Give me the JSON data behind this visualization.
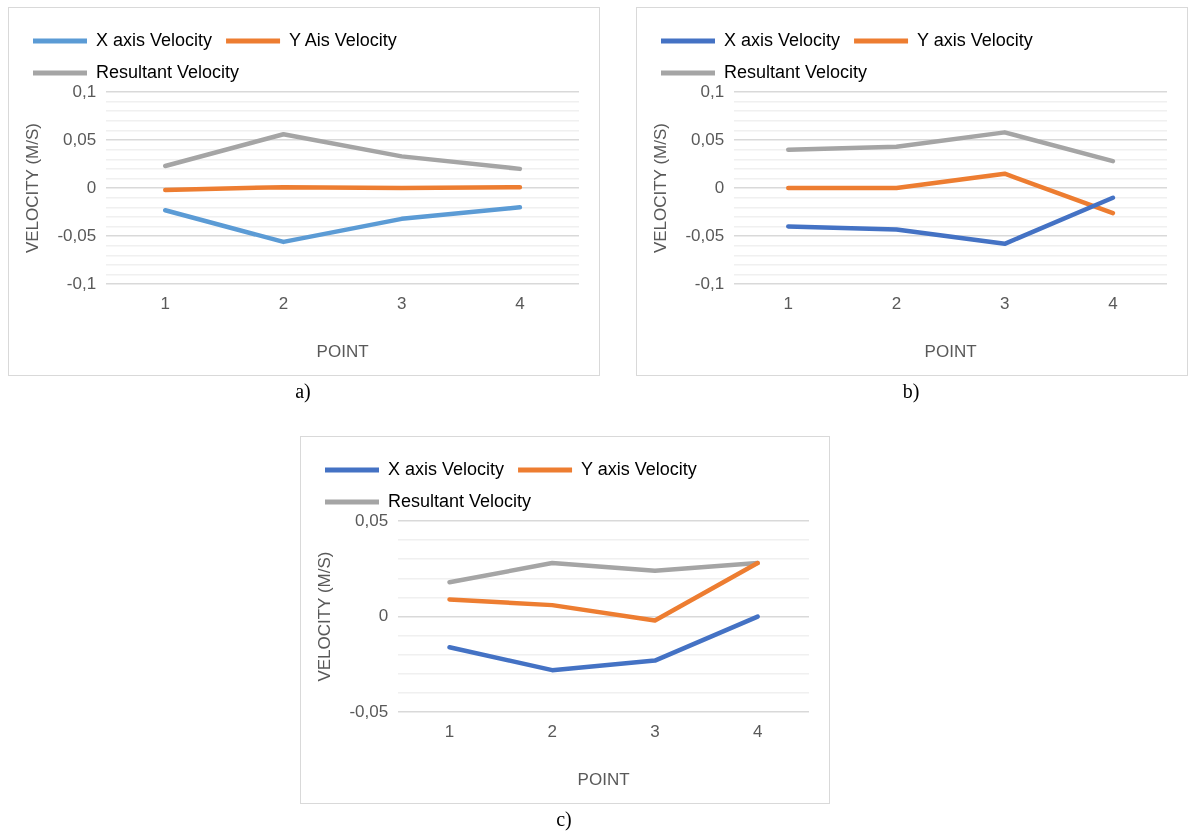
{
  "chart_data": [
    {
      "type": "line",
      "categories": [
        "1",
        "2",
        "3",
        "4"
      ],
      "xlabel": "POINT",
      "ylabel": "VELOCITY (M/S)",
      "ylim": [
        -0.1,
        0.1
      ],
      "yticks": [
        {
          "value": -0.1,
          "label": "-0,1"
        },
        {
          "value": -0.09,
          "label": null
        },
        {
          "value": -0.08,
          "label": null
        },
        {
          "value": -0.07,
          "label": null
        },
        {
          "value": -0.06,
          "label": null
        },
        {
          "value": -0.05,
          "label": "-0,05"
        },
        {
          "value": -0.04,
          "label": null
        },
        {
          "value": -0.03,
          "label": null
        },
        {
          "value": -0.02,
          "label": null
        },
        {
          "value": -0.01,
          "label": null
        },
        {
          "value": 0,
          "label": "0"
        },
        {
          "value": 0.01,
          "label": null
        },
        {
          "value": 0.02,
          "label": null
        },
        {
          "value": 0.03,
          "label": null
        },
        {
          "value": 0.04,
          "label": null
        },
        {
          "value": 0.05,
          "label": "0,05"
        },
        {
          "value": 0.06,
          "label": null
        },
        {
          "value": 0.07,
          "label": null
        },
        {
          "value": 0.08,
          "label": null
        },
        {
          "value": 0.09,
          "label": null
        },
        {
          "value": 0.1,
          "label": "0,1"
        }
      ],
      "grid": "y",
      "legend": "top",
      "annotations": [
        "a)"
      ],
      "series": [
        {
          "name": "X axis Velocity",
          "color": "#5b9bd5",
          "values": [
            -0.023,
            -0.056,
            -0.032,
            -0.02
          ]
        },
        {
          "name": "Y Ais Velocity",
          "color": "#ed7d31",
          "values": [
            -0.002,
            0.001,
            0,
            0.001
          ]
        },
        {
          "name": "Resultant Velocity",
          "color": "#a5a5a5",
          "values": [
            0.023,
            0.056,
            0.033,
            0.02
          ]
        }
      ]
    },
    {
      "type": "line",
      "categories": [
        "1",
        "2",
        "3",
        "4"
      ],
      "xlabel": "POINT",
      "ylabel": "VELOCITY (M/S)",
      "ylim": [
        -0.1,
        0.1
      ],
      "yticks": [
        {
          "value": -0.1,
          "label": "-0,1"
        },
        {
          "value": -0.09,
          "label": null
        },
        {
          "value": -0.08,
          "label": null
        },
        {
          "value": -0.07,
          "label": null
        },
        {
          "value": -0.06,
          "label": null
        },
        {
          "value": -0.05,
          "label": "-0,05"
        },
        {
          "value": -0.04,
          "label": null
        },
        {
          "value": -0.03,
          "label": null
        },
        {
          "value": -0.02,
          "label": null
        },
        {
          "value": -0.01,
          "label": null
        },
        {
          "value": 0,
          "label": "0"
        },
        {
          "value": 0.01,
          "label": null
        },
        {
          "value": 0.02,
          "label": null
        },
        {
          "value": 0.03,
          "label": null
        },
        {
          "value": 0.04,
          "label": null
        },
        {
          "value": 0.05,
          "label": "0,05"
        },
        {
          "value": 0.06,
          "label": null
        },
        {
          "value": 0.07,
          "label": null
        },
        {
          "value": 0.08,
          "label": null
        },
        {
          "value": 0.09,
          "label": null
        },
        {
          "value": 0.1,
          "label": "0,1"
        }
      ],
      "grid": "y",
      "legend": "top",
      "annotations": [
        "b)"
      ],
      "series": [
        {
          "name": "X axis Velocity",
          "color": "#4472c4",
          "values": [
            -0.04,
            -0.043,
            -0.058,
            -0.01
          ]
        },
        {
          "name": "Y axis Velocity",
          "color": "#ed7d31",
          "values": [
            0,
            0,
            0.015,
            -0.026
          ]
        },
        {
          "name": "Resultant Velocity",
          "color": "#a5a5a5",
          "values": [
            0.04,
            0.043,
            0.058,
            0.028
          ]
        }
      ]
    },
    {
      "type": "line",
      "categories": [
        "1",
        "2",
        "3",
        "4"
      ],
      "xlabel": "POINT",
      "ylabel": "VELOCITY (M/S)",
      "ylim": [
        -0.05,
        0.05
      ],
      "yticks": [
        {
          "value": -0.05,
          "label": "-0,05"
        },
        {
          "value": -0.04,
          "label": null
        },
        {
          "value": -0.03,
          "label": null
        },
        {
          "value": -0.02,
          "label": null
        },
        {
          "value": -0.01,
          "label": null
        },
        {
          "value": 0,
          "label": "0"
        },
        {
          "value": 0.01,
          "label": null
        },
        {
          "value": 0.02,
          "label": null
        },
        {
          "value": 0.03,
          "label": null
        },
        {
          "value": 0.04,
          "label": null
        },
        {
          "value": 0.05,
          "label": "0,05"
        }
      ],
      "grid": "y",
      "legend": "top",
      "annotations": [
        "c)"
      ],
      "series": [
        {
          "name": "X axis Velocity",
          "color": "#4472c4",
          "values": [
            -0.016,
            -0.028,
            -0.023,
            0
          ]
        },
        {
          "name": "Y axis Velocity",
          "color": "#ed7d31",
          "values": [
            0.009,
            0.006,
            -0.002,
            0.028
          ]
        },
        {
          "name": "Resultant Velocity",
          "color": "#a5a5a5",
          "values": [
            0.018,
            0.028,
            0.024,
            0.028
          ]
        }
      ]
    }
  ]
}
